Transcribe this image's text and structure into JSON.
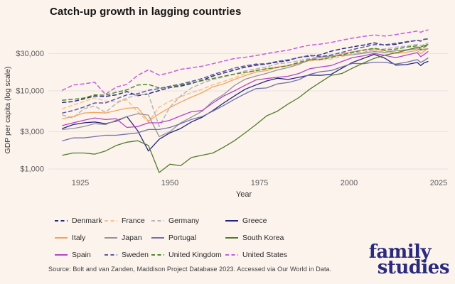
{
  "header": {
    "title": "Catch-up growth in lagging countries"
  },
  "footer": {
    "source": "Source: Bolt and van Zanden, Maddison Project Database 2023. Accessed via Our World in Data.",
    "logo": {
      "line1": "family",
      "line2": "studies",
      "color": "#2b2b7d"
    }
  },
  "colors": {
    "background": "#fcf3ec",
    "gridline": "#e8e2e2",
    "axis_tick_text": "#5b5b5b",
    "axis_title_text": "#333333",
    "title_text": "#141414",
    "logo_navy": "#2b2b7d"
  },
  "chart_data": {
    "type": "line",
    "title": "Catch-up growth in lagging countries",
    "xlabel": "Year",
    "ylabel": "GDP per capita (log scale)",
    "y_scale": "log",
    "grid": "horizontal-only",
    "legend_position": "bottom",
    "xlim": [
      1916,
      2028
    ],
    "ylim": [
      850,
      65000
    ],
    "x_tick_values": [
      1925,
      1950,
      1975,
      2000,
      2025
    ],
    "x_tick_labels": [
      "1925",
      "1950",
      "1975",
      "2000",
      "2025"
    ],
    "y_tick_values": [
      30000,
      10000,
      3000,
      1000
    ],
    "y_tick_labels": [
      "$30,000",
      "$10,000",
      "$3,000",
      "$1,000"
    ],
    "years": [
      1920,
      1923,
      1926,
      1929,
      1932,
      1935,
      1938,
      1941,
      1944,
      1947,
      1950,
      1953,
      1956,
      1959,
      1962,
      1965,
      1968,
      1971,
      1974,
      1977,
      1980,
      1983,
      1986,
      1989,
      1992,
      1995,
      1998,
      2001,
      2004,
      2007,
      2010,
      2013,
      2016,
      2019,
      2020,
      2021,
      2022
    ],
    "series": [
      {
        "name": "Denmark",
        "color": "#2b2b7d",
        "dashed": true,
        "values": [
          7100,
          7300,
          7900,
          8600,
          8500,
          8900,
          9800,
          8700,
          9200,
          10100,
          11000,
          11500,
          12400,
          13700,
          15500,
          16900,
          18500,
          20100,
          21300,
          22100,
          23400,
          24400,
          26900,
          27900,
          28900,
          32200,
          34600,
          36600,
          38600,
          41200,
          38500,
          39500,
          42000,
          44300,
          43400,
          45900,
          46300
        ]
      },
      {
        "name": "France",
        "color": "#f6c28b",
        "dashed": true,
        "values": [
          5900,
          6600,
          7300,
          8200,
          7400,
          7300,
          7700,
          5400,
          4000,
          6200,
          7400,
          8400,
          9500,
          10500,
          12000,
          13200,
          14800,
          16700,
          18300,
          19300,
          20400,
          21200,
          22500,
          24300,
          24800,
          25600,
          27500,
          29800,
          30800,
          32400,
          31700,
          32300,
          33500,
          35500,
          32800,
          35000,
          36000
        ]
      },
      {
        "name": "Germany",
        "color": "#b5b5bc",
        "dashed": true,
        "values": [
          4900,
          4500,
          5900,
          6400,
          5300,
          6900,
          8100,
          8900,
          9000,
          3500,
          6200,
          8600,
          10900,
          12500,
          14000,
          15100,
          16400,
          18000,
          19100,
          20300,
          22200,
          22900,
          24300,
          26100,
          27300,
          27700,
          29000,
          30800,
          31200,
          33500,
          34400,
          36200,
          37500,
          39300,
          37800,
          39200,
          41000
        ]
      },
      {
        "name": "Greece",
        "color": "#24247a",
        "dashed": false,
        "values": [
          3300,
          3700,
          3900,
          4000,
          3800,
          4100,
          4700,
          3100,
          1700,
          2400,
          2900,
          3300,
          4000,
          4600,
          5600,
          7000,
          8600,
          10500,
          11900,
          13400,
          14500,
          14000,
          14900,
          15900,
          15800,
          16300,
          19500,
          23200,
          26100,
          29300,
          26200,
          21400,
          21700,
          23100,
          21100,
          22900,
          23800
        ]
      },
      {
        "name": "Italy",
        "color": "#f0a55f",
        "dashed": false,
        "values": [
          4400,
          4700,
          5200,
          5300,
          5200,
          5600,
          6000,
          6100,
          4100,
          5100,
          6100,
          7200,
          8300,
          9500,
          11300,
          12300,
          14000,
          15700,
          17400,
          18200,
          20100,
          20900,
          22500,
          24500,
          25600,
          26800,
          29800,
          31800,
          33000,
          34500,
          32600,
          30200,
          31300,
          32900,
          30000,
          32300,
          34800
        ]
      },
      {
        "name": "Japan",
        "color": "#94949c",
        "dashed": false,
        "values": [
          3200,
          3300,
          3500,
          3800,
          3700,
          4200,
          4700,
          5100,
          4900,
          2600,
          3000,
          3900,
          4600,
          5500,
          7400,
          9000,
          11700,
          14100,
          15500,
          16800,
          18500,
          19900,
          21900,
          25100,
          26900,
          28000,
          28300,
          29000,
          30300,
          31900,
          31100,
          32700,
          33500,
          34500,
          33100,
          33900,
          34600
        ]
      },
      {
        "name": "Portugal",
        "color": "#7171ad",
        "dashed": false,
        "values": [
          2300,
          2500,
          2500,
          2600,
          2700,
          2700,
          2800,
          2900,
          3200,
          3200,
          3400,
          3800,
          4300,
          4700,
          5500,
          6500,
          7800,
          9200,
          10700,
          10900,
          12300,
          12800,
          13900,
          16300,
          17600,
          18200,
          20300,
          22500,
          22300,
          23300,
          23300,
          22000,
          23300,
          25100,
          23200,
          24500,
          26300
        ]
      },
      {
        "name": "South Korea",
        "color": "#527c2a",
        "dashed": false,
        "values": [
          1500,
          1600,
          1600,
          1550,
          1700,
          2000,
          2200,
          2300,
          2000,
          900,
          1150,
          1100,
          1400,
          1500,
          1600,
          1900,
          2300,
          2900,
          3700,
          4800,
          5500,
          6800,
          8200,
          10500,
          12900,
          15800,
          16700,
          19600,
          22700,
          26100,
          28600,
          30700,
          33200,
          36300,
          36200,
          38100,
          39200
        ]
      },
      {
        "name": "Spain",
        "color": "#b545c8",
        "dashed": false,
        "values": [
          3600,
          3900,
          4200,
          4500,
          4300,
          4400,
          3400,
          3500,
          3900,
          3900,
          4200,
          4800,
          5400,
          5600,
          7000,
          8600,
          10000,
          11800,
          13800,
          14400,
          14900,
          15400,
          16700,
          19200,
          20200,
          21100,
          23800,
          26700,
          28100,
          30200,
          28500,
          26600,
          28700,
          30900,
          27400,
          29300,
          31800
        ]
      },
      {
        "name": "Sweden",
        "color": "#5858a8",
        "dashed": true,
        "values": [
          5200,
          5600,
          6200,
          7000,
          7000,
          7900,
          8900,
          9200,
          10200,
          10700,
          11500,
          12200,
          13200,
          14400,
          16200,
          17800,
          19600,
          20900,
          22000,
          22300,
          23900,
          25000,
          26600,
          28600,
          27400,
          28800,
          31100,
          33800,
          36400,
          39100,
          39000,
          40600,
          42600,
          44500,
          43700,
          45600,
          46000
        ]
      },
      {
        "name": "United Kingdom",
        "color": "#4d8a2e",
        "dashed": true,
        "values": [
          7600,
          7800,
          8100,
          8900,
          8800,
          9600,
          10300,
          11900,
          12100,
          10900,
          11100,
          11800,
          12700,
          13500,
          14400,
          15400,
          16400,
          17300,
          18100,
          19200,
          19900,
          21100,
          23100,
          25200,
          25200,
          26800,
          28900,
          31200,
          33300,
          35100,
          33200,
          34300,
          36300,
          37700,
          33800,
          36600,
          38500
        ]
      },
      {
        "name": "United States",
        "color": "#c45fdd",
        "dashed": true,
        "values": [
          10200,
          11900,
          12300,
          12900,
          9000,
          11200,
          12100,
          15800,
          18600,
          15900,
          17100,
          18900,
          19700,
          20700,
          22300,
          24100,
          26000,
          26900,
          28300,
          30000,
          31700,
          33200,
          36000,
          38500,
          39700,
          41700,
          44600,
          47500,
          49800,
          52000,
          50300,
          52500,
          55400,
          58300,
          56400,
          59000,
          60300
        ]
      }
    ]
  }
}
